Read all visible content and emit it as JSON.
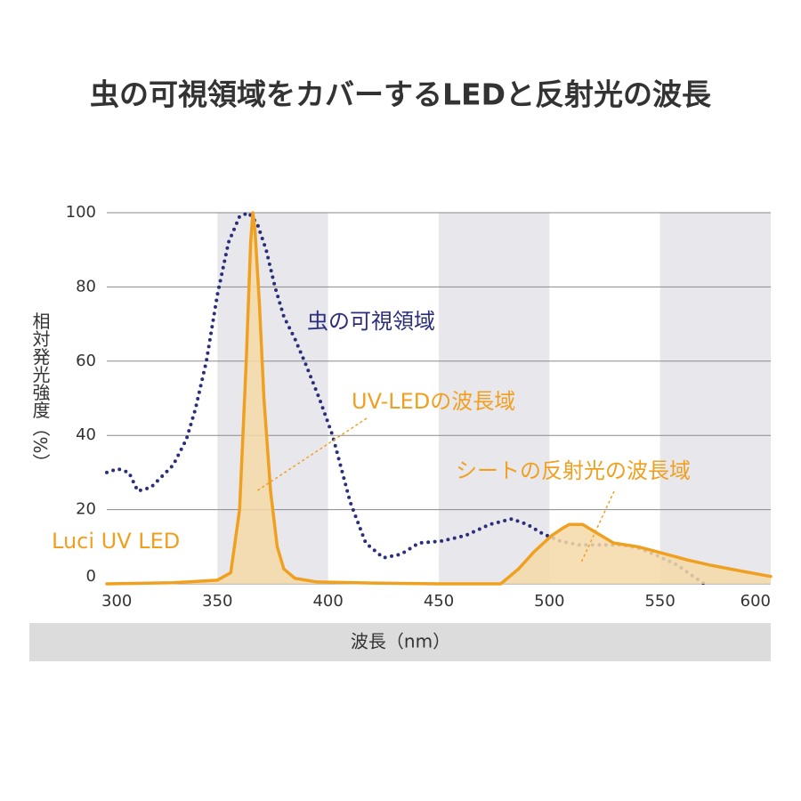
{
  "chart_data": {
    "type": "line",
    "title": "虫の可視領域をカバーするLEDと反射光の波長",
    "x_label": "波長（nm）",
    "y_label": "相対発光強度（%）",
    "xlim": [
      300,
      600
    ],
    "xticks": [
      300,
      350,
      400,
      450,
      500,
      550,
      600
    ],
    "ylim": [
      0,
      100
    ],
    "yticks": [
      0,
      20,
      40,
      60,
      80,
      100
    ],
    "grid": true,
    "series": [
      {
        "name": "虫の可視領域",
        "color": "#2b2e7a",
        "style": "dotted",
        "fill": false,
        "x": [
          300,
          305,
          310,
          314,
          320,
          330,
          336,
          340,
          345,
          350,
          355,
          360,
          364,
          368,
          372,
          376,
          380,
          385,
          390,
          396,
          402,
          410,
          417,
          425,
          433,
          441,
          451,
          462,
          473,
          483,
          490,
          497,
          505,
          513,
          523,
          533,
          541,
          549,
          558,
          565,
          570
        ],
        "values": [
          30,
          31,
          30,
          25,
          26,
          32,
          39,
          47,
          60,
          78,
          92,
          99,
          100,
          97,
          90,
          80,
          72,
          66,
          59,
          50,
          40,
          22,
          11,
          7,
          8,
          11,
          11.5,
          13,
          16,
          17.5,
          16,
          13.5,
          11.5,
          10.5,
          10.5,
          10.5,
          9.5,
          7.5,
          5,
          2,
          0
        ]
      },
      {
        "name": "Luci UV LED",
        "color": "#f0a020",
        "style": "solid",
        "fill": true,
        "x": [
          300,
          330,
          350,
          356,
          360,
          363,
          365,
          366,
          367,
          369,
          371,
          374,
          377,
          380,
          385,
          395,
          420,
          450,
          478,
          486,
          493,
          501,
          506,
          509,
          515,
          522,
          529,
          540,
          549,
          562,
          573,
          588,
          600
        ],
        "values": [
          0,
          0.3,
          1,
          3,
          20,
          60,
          92,
          100,
          95,
          75,
          50,
          25,
          10,
          4,
          1.5,
          0.5,
          0.2,
          0,
          0,
          4,
          8.6,
          13,
          15,
          16,
          16,
          13.5,
          11,
          10,
          8.6,
          6.5,
          5,
          3.3,
          2
        ]
      }
    ],
    "annotations": [
      "UV-LEDの波長域",
      "シートの反射光の波長域"
    ]
  }
}
